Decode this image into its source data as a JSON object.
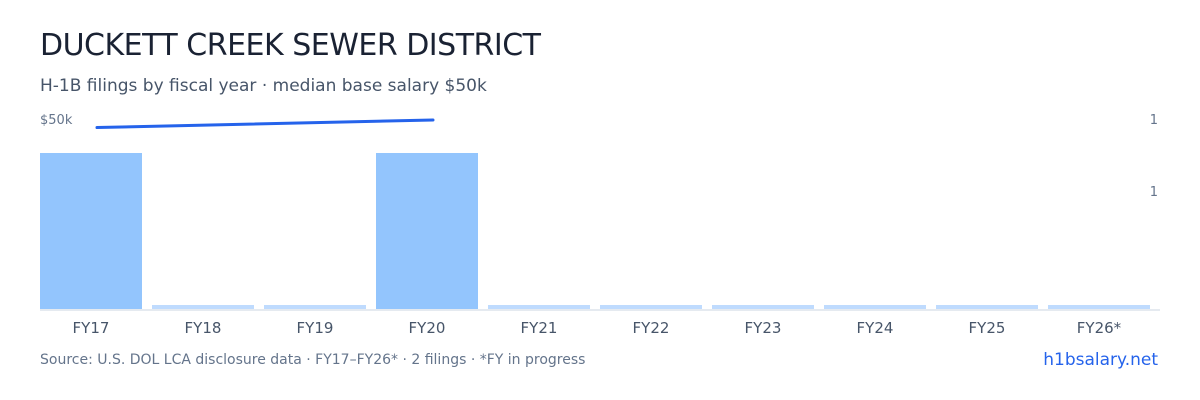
{
  "header": {
    "title": "DUCKETT CREEK SEWER DISTRICT",
    "subtitle": "H-1B filings by fiscal year · median base salary $50k"
  },
  "chart_data": {
    "type": "bar",
    "categories": [
      "FY17",
      "FY18",
      "FY19",
      "FY20",
      "FY21",
      "FY22",
      "FY23",
      "FY24",
      "FY25",
      "FY26*"
    ],
    "series": [
      {
        "type": "bar",
        "axis": "right",
        "values": [
          1,
          0,
          0,
          1,
          0,
          0,
          0,
          0,
          0,
          0
        ]
      },
      {
        "type": "line",
        "axis": "left",
        "values": [
          48000,
          null,
          null,
          50000,
          null,
          null,
          null,
          null,
          null,
          null
        ]
      }
    ],
    "left_axis": {
      "tick_label": "$50k",
      "max": 50000
    },
    "right_axis": {
      "tick_labels": [
        "1",
        "1"
      ]
    },
    "colors": {
      "bar": "#93c5fd",
      "bar_empty": "#bfdbfe",
      "line": "#2563eb",
      "axis": "#cbd5e1"
    }
  },
  "footer": {
    "source": "Source: U.S. DOL LCA disclosure data · FY17–FY26* · 2 filings · *FY in progress",
    "site": "h1bsalary.net"
  }
}
